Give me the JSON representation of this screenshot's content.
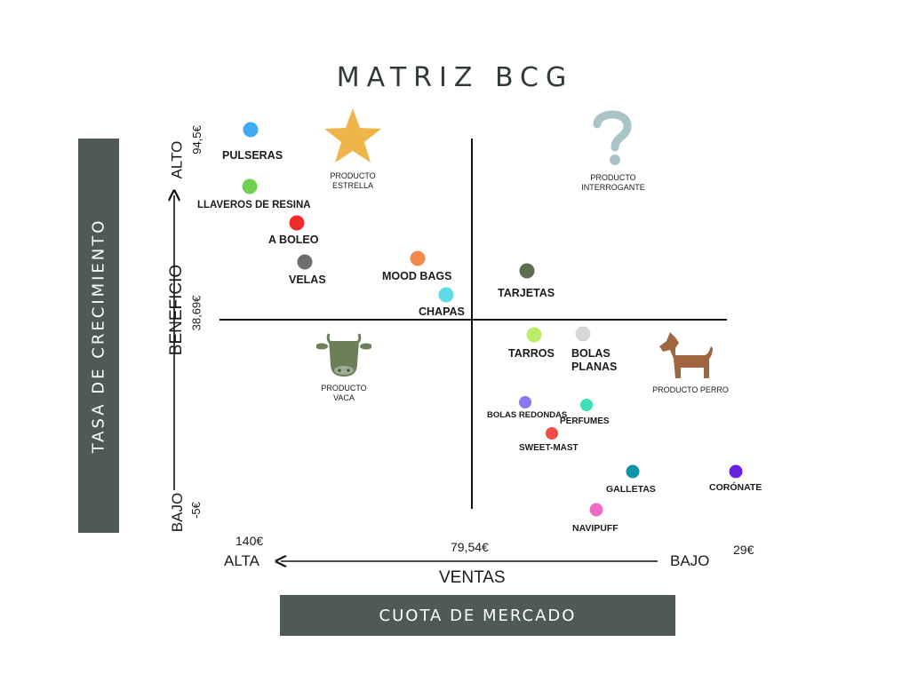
{
  "title": "MATRIZ BCG",
  "side_label": "TASA DE CRECIMIENTO",
  "bottom_label": "CUOTA DE MERCADO",
  "y_axis": {
    "title": "BENEFICIO",
    "high": "ALTO",
    "low": "BAJO",
    "top_value": "94,5€",
    "mid_value": "38,69€",
    "bottom_value": "-5€"
  },
  "x_axis": {
    "title": "VENTAS",
    "left_word": "ALTA",
    "right_word": "BAJO",
    "left_value": "140€",
    "mid_value": "79,54€",
    "right_value": "29€"
  },
  "quadrants": {
    "star": {
      "l1": "PRODUCTO",
      "l2": "ESTRELLA",
      "icon": "star-icon"
    },
    "question": {
      "l1": "PRODUCTO",
      "l2": "INTERROGANTE",
      "icon": "question-mark-icon"
    },
    "cow": {
      "l1": "PRODUCTO",
      "l2": "VACA",
      "icon": "cow-icon"
    },
    "dog": {
      "l1": "PRODUCTO PERRO",
      "icon": "dog-icon"
    }
  },
  "products": [
    {
      "name": "PULSERAS",
      "color": "#3fa9f5"
    },
    {
      "name": "LLAVEROS DE RESINA",
      "color": "#6fcf4f"
    },
    {
      "name": "A BOLEO",
      "color": "#ef2b2b"
    },
    {
      "name": "VELAS",
      "color": "#6e6e6e"
    },
    {
      "name": "MOOD BAGS",
      "color": "#f5894a"
    },
    {
      "name": "CHAPAS",
      "color": "#5ddbe6"
    },
    {
      "name": "TARJETAS",
      "color": "#5f6e4e"
    },
    {
      "name": "TARROS",
      "color": "#b9ef66"
    },
    {
      "name": "BOLAS",
      "name2": "PLANAS",
      "color": "#d6d6d6"
    },
    {
      "name": "BOLAS REDONDAS",
      "color": "#8a78f0"
    },
    {
      "name": "PERFUMES",
      "color": "#3fe0b8"
    },
    {
      "name": "SWEET-MAST",
      "color": "#f04a4a"
    },
    {
      "name": "GALLETAS",
      "color": "#0f93a8"
    },
    {
      "name": "CORÓNATE",
      "color": "#6a1fe0"
    },
    {
      "name": "NAVIPUFF",
      "color": "#f06ac8"
    }
  ]
}
